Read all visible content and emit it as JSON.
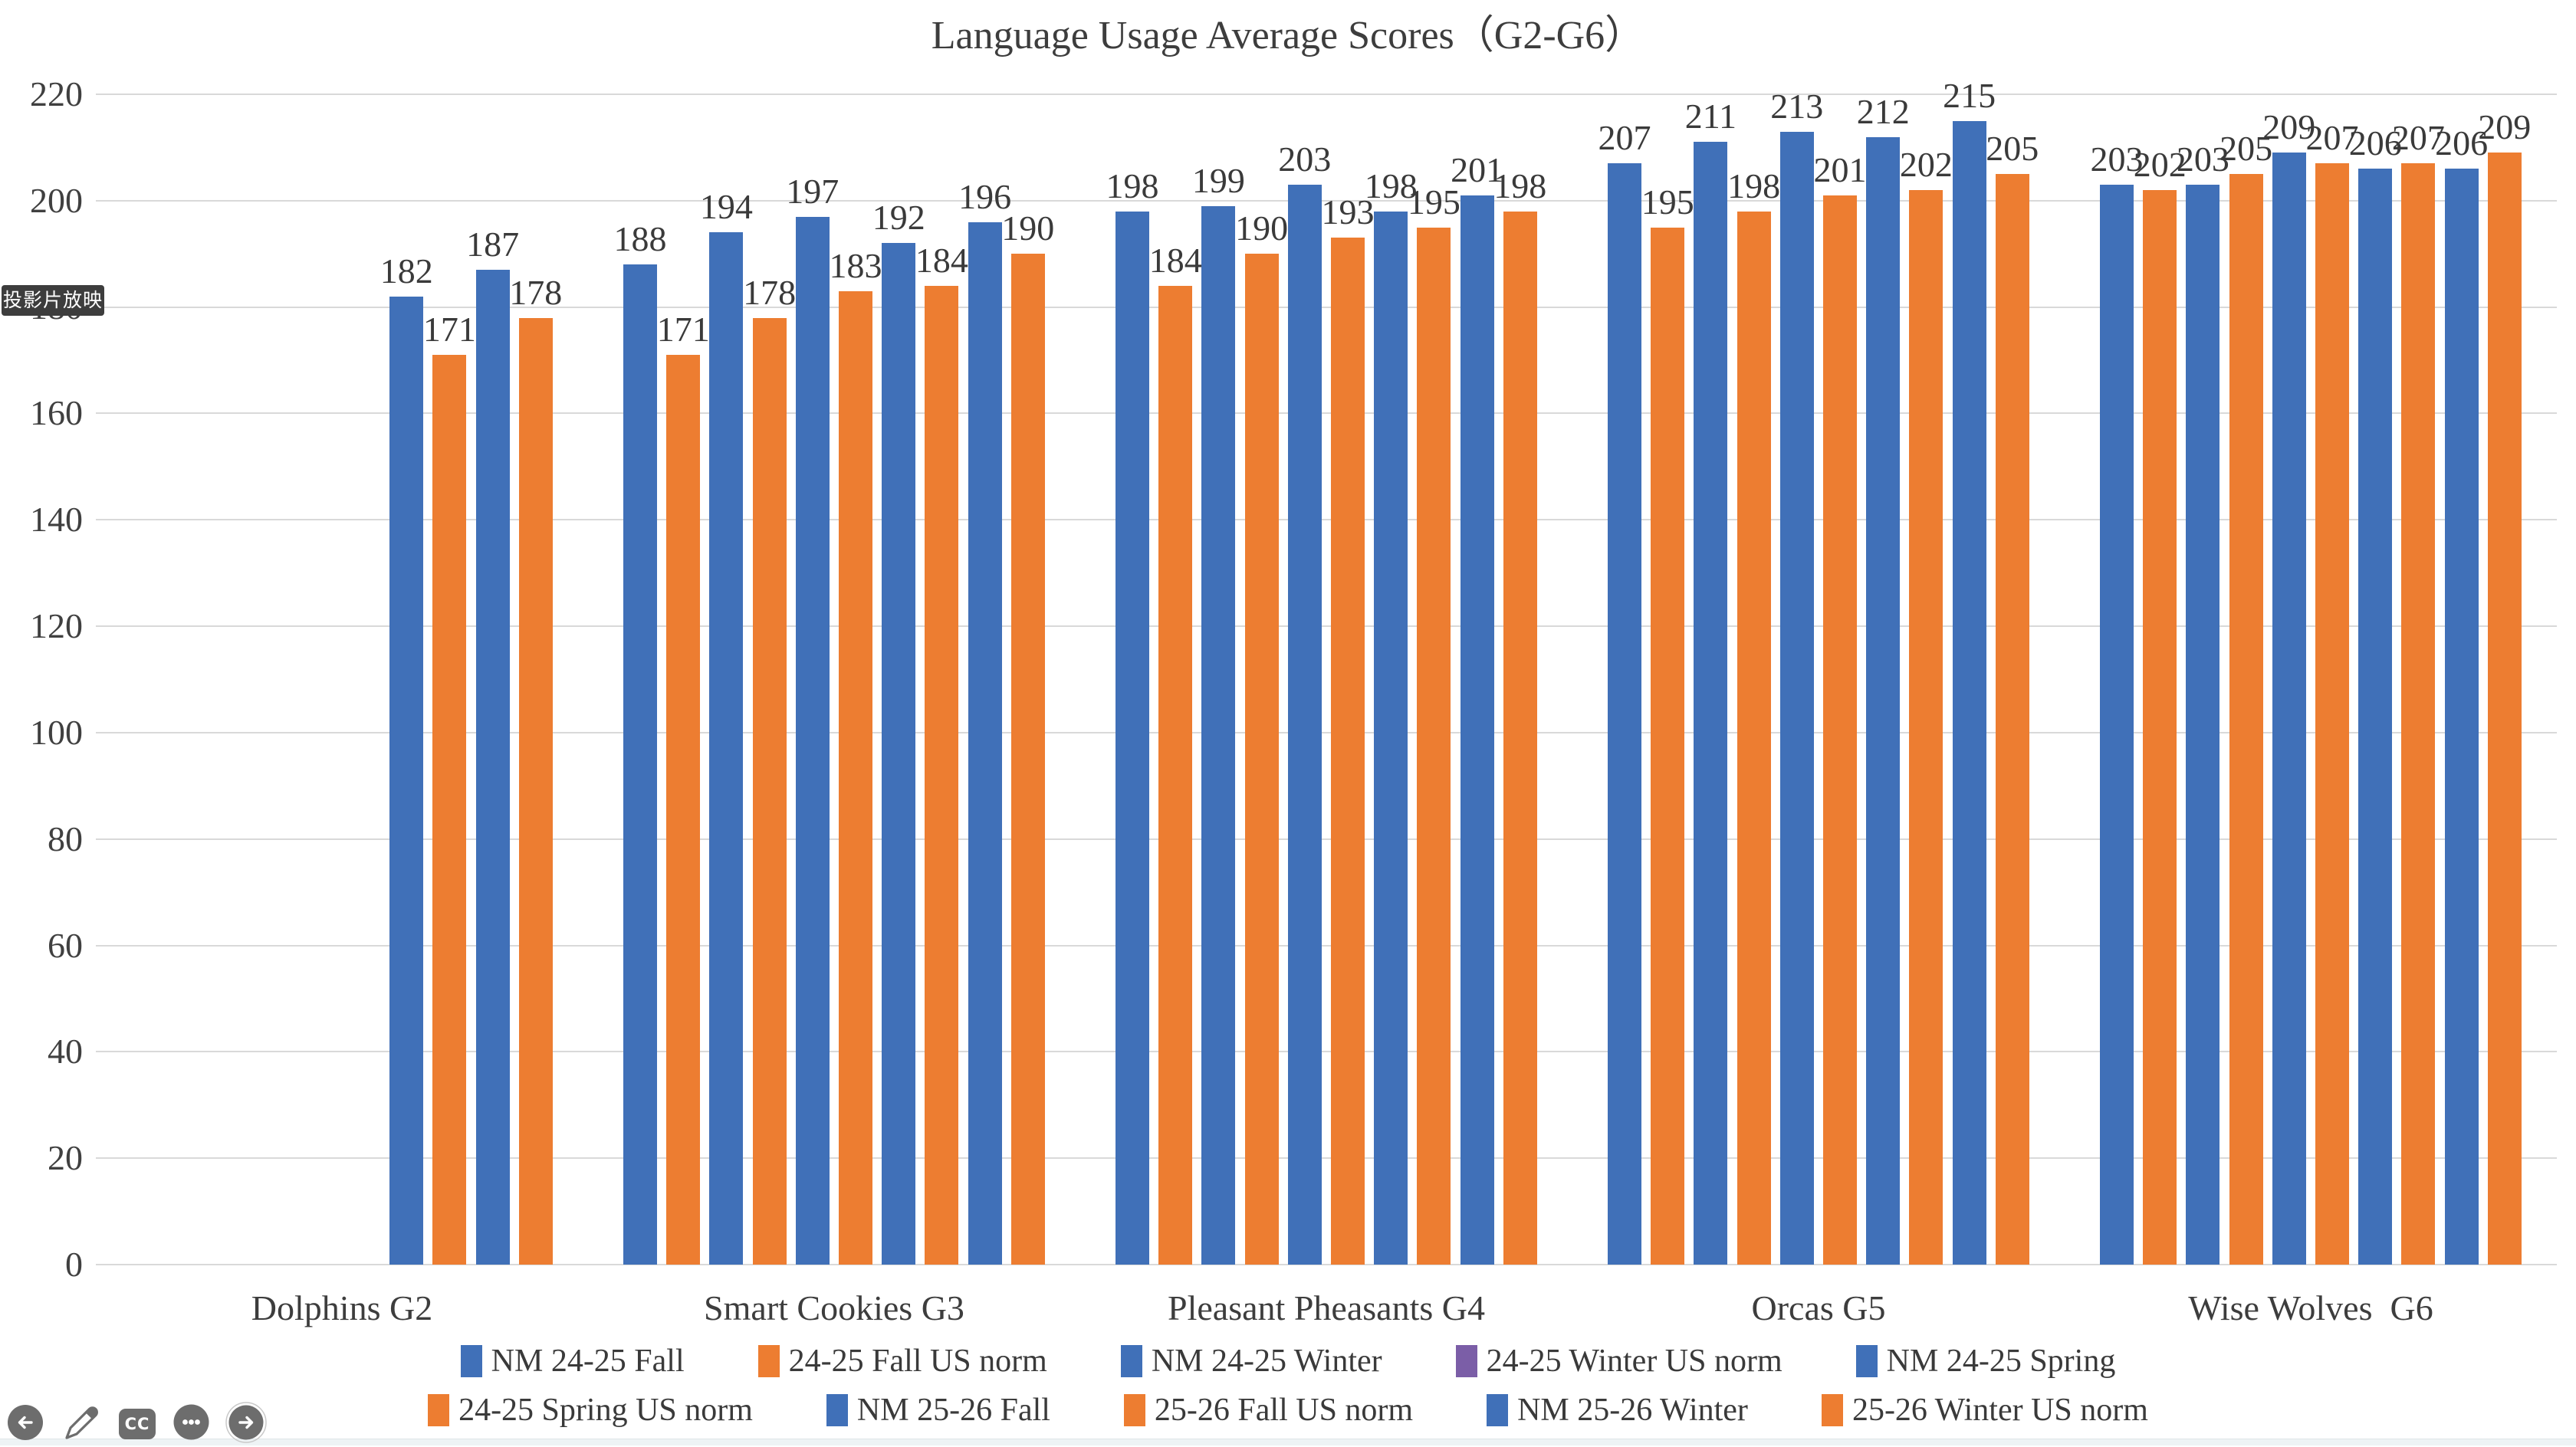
{
  "window": {
    "slideshow_tooltip": "投影片放映"
  },
  "chart_data": {
    "type": "bar",
    "title": "Language Usage Average Scores（G2-G6）",
    "categories": [
      "Dolphins G2",
      "Smart Cookies G3",
      "Pleasant Pheasants G4",
      "Orcas G5",
      "Wise Wolves  G6"
    ],
    "series": [
      {
        "name": "NM 24-25 Fall",
        "color": "#4070B8",
        "legend_color": "#4070B8",
        "values": [
          null,
          188,
          198,
          207,
          203
        ]
      },
      {
        "name": "24-25 Fall US norm",
        "color": "#ED7D31",
        "legend_color": "#ED7D31",
        "values": [
          null,
          171,
          184,
          195,
          202
        ]
      },
      {
        "name": "NM 24-25 Winter",
        "color": "#4070B8",
        "legend_color": "#4070B8",
        "values": [
          null,
          194,
          199,
          211,
          203
        ]
      },
      {
        "name": "24-25 Winter US norm",
        "color": "#ED7D31",
        "legend_color": "#7B5EA7",
        "values": [
          null,
          178,
          190,
          198,
          205
        ]
      },
      {
        "name": "NM 24-25 Spring",
        "color": "#4070B8",
        "legend_color": "#4070B8",
        "values": [
          null,
          197,
          203,
          213,
          209
        ]
      },
      {
        "name": "24-25 Spring US norm",
        "color": "#ED7D31",
        "legend_color": "#ED7D31",
        "values": [
          null,
          183,
          193,
          201,
          207
        ]
      },
      {
        "name": "NM 25-26 Fall",
        "color": "#4070B8",
        "legend_color": "#4070B8",
        "values": [
          182,
          192,
          198,
          212,
          206
        ]
      },
      {
        "name": "25-26 Fall US norm",
        "color": "#ED7D31",
        "legend_color": "#ED7D31",
        "values": [
          171,
          184,
          195,
          202,
          207
        ]
      },
      {
        "name": "NM 25-26 Winter",
        "color": "#4070B8",
        "legend_color": "#4070B8",
        "values": [
          187,
          196,
          201,
          215,
          206
        ]
      },
      {
        "name": "25-26 Winter US norm",
        "color": "#ED7D31",
        "legend_color": "#ED7D31",
        "values": [
          178,
          190,
          198,
          205,
          209
        ]
      }
    ],
    "ylim": [
      0,
      220
    ],
    "ytick_step": 20,
    "grid": true,
    "show_data_labels": true,
    "legend_position": "bottom"
  },
  "toolbar": {
    "icons": [
      {
        "name": "previous-slide"
      },
      {
        "name": "pen"
      },
      {
        "name": "closed-captions",
        "label": "CC"
      },
      {
        "name": "more-options"
      },
      {
        "name": "next-slide"
      }
    ]
  },
  "colors": {
    "bar_blue": "#4070B8",
    "bar_orange": "#ED7D31",
    "legend_purple": "#7B5EA7",
    "gridline": "#d9d9d9",
    "text": "#3a3a3a",
    "tooltip_bg": "#3d3d3d",
    "toolbar_gray": "#6d6d6d"
  }
}
